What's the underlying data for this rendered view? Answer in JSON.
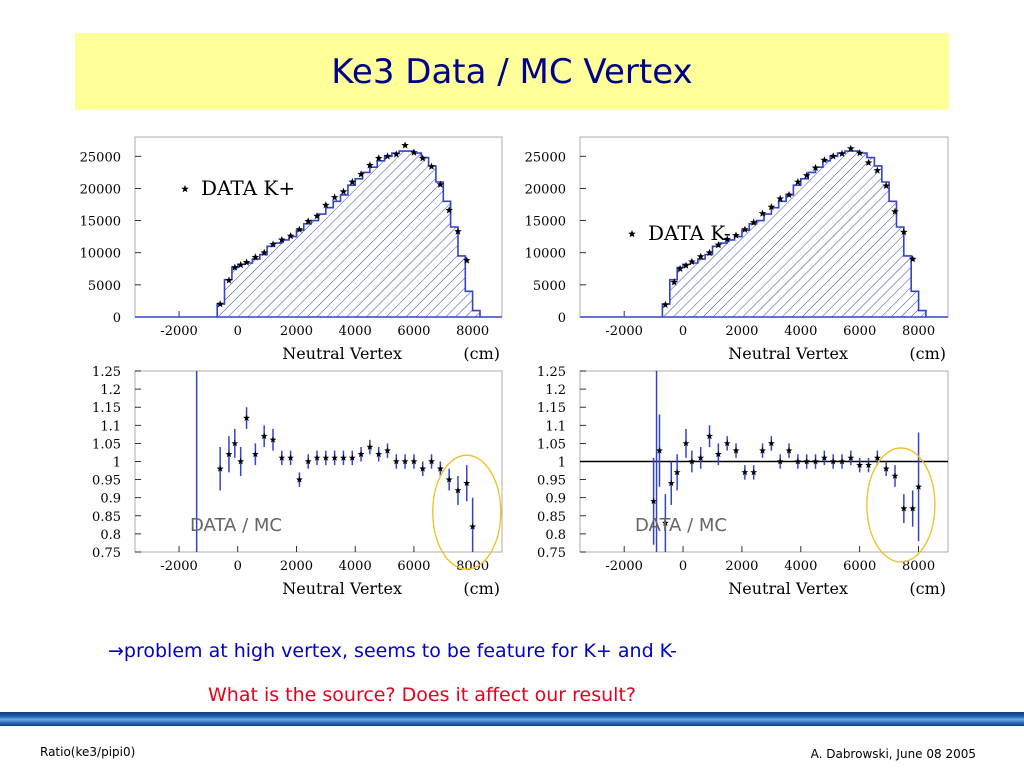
{
  "slide": {
    "title": "Ke3 Data / MC Vertex",
    "arrow": "→",
    "note1": "problem at high vertex, seems to be feature for K+ and K-",
    "note2": "What is the source? Does it affect our result?",
    "footer_left": "Ratio(ke3/pipi0)",
    "footer_right": "A. Dabrowski, June 08 2005"
  },
  "colors": {
    "title_bg": "#ffff99",
    "title_text": "#00008b",
    "note1": "#0000cc",
    "note2": "#e8001c",
    "hist_line": "#3344cc",
    "highlight_circle": "#f0c020"
  },
  "chart_data": [
    {
      "type": "histogram",
      "legend": "DATA  K+",
      "xlabel": "Neutral Vertex",
      "xunit": "(cm)",
      "xlim": [
        -3500,
        9000
      ],
      "ylim": [
        0,
        28000
      ],
      "xticks": [
        "-2000",
        "0",
        "2000",
        "4000",
        "6000",
        "8000"
      ],
      "yticks": [
        "0",
        "5000",
        "10000",
        "15000",
        "20000",
        "25000"
      ],
      "series": [
        {
          "kind": "mc_histogram",
          "values": [
            [
              -3500,
              0
            ],
            [
              -1000,
              0
            ],
            [
              -700,
              2000
            ],
            [
              -450,
              5800
            ],
            [
              -200,
              7700
            ],
            [
              0,
              8200
            ],
            [
              250,
              8400
            ],
            [
              500,
              9000
            ],
            [
              750,
              9700
            ],
            [
              1000,
              11000
            ],
            [
              1250,
              11500
            ],
            [
              1500,
              12000
            ],
            [
              1750,
              12500
            ],
            [
              2000,
              13500
            ],
            [
              2250,
              14500
            ],
            [
              2500,
              15000
            ],
            [
              2750,
              16000
            ],
            [
              3000,
              17000
            ],
            [
              3250,
              18000
            ],
            [
              3500,
              19000
            ],
            [
              3750,
              20500
            ],
            [
              4000,
              21500
            ],
            [
              4250,
              22500
            ],
            [
              4500,
              23300
            ],
            [
              4750,
              24300
            ],
            [
              5000,
              25000
            ],
            [
              5250,
              25500
            ],
            [
              5500,
              25800
            ],
            [
              5750,
              25800
            ],
            [
              6000,
              25500
            ],
            [
              6250,
              24800
            ],
            [
              6500,
              23500
            ],
            [
              6750,
              21000
            ],
            [
              7000,
              18000
            ],
            [
              7250,
              14000
            ],
            [
              7500,
              9500
            ],
            [
              7750,
              4000
            ],
            [
              8000,
              1000
            ],
            [
              8250,
              0
            ],
            [
              9000,
              0
            ]
          ]
        },
        {
          "kind": "data_points",
          "x": [
            -600,
            -300,
            -100,
            100,
            300,
            600,
            900,
            1200,
            1500,
            1800,
            2100,
            2400,
            2700,
            3000,
            3300,
            3600,
            3900,
            4200,
            4500,
            4800,
            5100,
            5400,
            5700,
            6000,
            6300,
            6600,
            6900,
            7200,
            7500,
            7800
          ],
          "y": [
            2000,
            5700,
            7700,
            8100,
            8500,
            9300,
            10000,
            11300,
            12000,
            12600,
            13600,
            14900,
            15700,
            17400,
            18600,
            19500,
            21000,
            22200,
            23600,
            24700,
            25000,
            25300,
            26700,
            25600,
            24700,
            23400,
            20600,
            16600,
            13300,
            8800
          ]
        }
      ]
    },
    {
      "type": "histogram",
      "legend": "DATA  K-",
      "xlabel": "Neutral Vertex",
      "xunit": "(cm)",
      "xlim": [
        -3500,
        9000
      ],
      "ylim": [
        0,
        28000
      ],
      "xticks": [
        "-2000",
        "0",
        "2000",
        "4000",
        "6000",
        "8000"
      ],
      "yticks": [
        "0",
        "5000",
        "10000",
        "15000",
        "20000",
        "25000"
      ],
      "series": [
        {
          "kind": "mc_histogram",
          "values": [
            [
              -3500,
              0
            ],
            [
              -1000,
              0
            ],
            [
              -700,
              2000
            ],
            [
              -450,
              5800
            ],
            [
              -200,
              7700
            ],
            [
              0,
              8200
            ],
            [
              250,
              8400
            ],
            [
              500,
              9000
            ],
            [
              750,
              9700
            ],
            [
              1000,
              11000
            ],
            [
              1250,
              11500
            ],
            [
              1500,
              12000
            ],
            [
              1750,
              12500
            ],
            [
              2000,
              13500
            ],
            [
              2250,
              14500
            ],
            [
              2500,
              15000
            ],
            [
              2750,
              16000
            ],
            [
              3000,
              17000
            ],
            [
              3250,
              18000
            ],
            [
              3500,
              19000
            ],
            [
              3750,
              20500
            ],
            [
              4000,
              21500
            ],
            [
              4250,
              22500
            ],
            [
              4500,
              23300
            ],
            [
              4750,
              24300
            ],
            [
              5000,
              25000
            ],
            [
              5250,
              25500
            ],
            [
              5500,
              25800
            ],
            [
              5750,
              25800
            ],
            [
              6000,
              25500
            ],
            [
              6250,
              24800
            ],
            [
              6500,
              23500
            ],
            [
              6750,
              21000
            ],
            [
              7000,
              18000
            ],
            [
              7250,
              14000
            ],
            [
              7500,
              9500
            ],
            [
              7750,
              4000
            ],
            [
              8000,
              1000
            ],
            [
              8250,
              0
            ],
            [
              9000,
              0
            ]
          ]
        },
        {
          "kind": "data_points",
          "x": [
            -600,
            -300,
            -100,
            100,
            300,
            600,
            900,
            1200,
            1500,
            1800,
            2100,
            2400,
            2700,
            3000,
            3300,
            3600,
            3900,
            4200,
            4500,
            4800,
            5100,
            5400,
            5700,
            6000,
            6300,
            6600,
            6900,
            7200,
            7500,
            7800
          ],
          "y": [
            1900,
            5400,
            7500,
            8000,
            8600,
            9400,
            10000,
            11200,
            12100,
            12700,
            13600,
            14700,
            16100,
            17100,
            18400,
            19000,
            21000,
            22000,
            23200,
            24400,
            25000,
            25400,
            26200,
            25500,
            24000,
            22800,
            20400,
            16400,
            13200,
            9000
          ]
        }
      ]
    },
    {
      "type": "scatter",
      "legend": "DATA / MC",
      "xlabel": "Neutral Vertex",
      "xunit": "(cm)",
      "xlim": [
        -3500,
        9000
      ],
      "ylim": [
        0.75,
        1.25
      ],
      "xticks": [
        "-2000",
        "0",
        "2000",
        "4000",
        "6000",
        "8000"
      ],
      "yticks": [
        "0.75",
        "0.8",
        "0.85",
        "0.9",
        "0.95",
        "1",
        "1.05",
        "1.1",
        "1.15",
        "1.2",
        "1.25"
      ],
      "reference_line": null,
      "highlight_circle": true,
      "vertical_line_x": -1400,
      "series": [
        {
          "name": "",
          "x": [
            -600,
            -300,
            -100,
            100,
            300,
            600,
            900,
            1200,
            1500,
            1800,
            2100,
            2400,
            2700,
            3000,
            3300,
            3600,
            3900,
            4200,
            4500,
            4800,
            5100,
            5400,
            5700,
            6000,
            6300,
            6600,
            6900,
            7200,
            7500,
            7800,
            8000
          ],
          "y": [
            0.98,
            1.02,
            1.05,
            1.0,
            1.12,
            1.02,
            1.07,
            1.06,
            1.01,
            1.01,
            0.95,
            1.0,
            1.01,
            1.01,
            1.01,
            1.01,
            1.01,
            1.02,
            1.04,
            1.02,
            1.03,
            1.0,
            1.0,
            1.0,
            0.98,
            1.0,
            0.98,
            0.95,
            0.92,
            0.94,
            0.82
          ],
          "err": [
            0.06,
            0.05,
            0.04,
            0.04,
            0.03,
            0.03,
            0.03,
            0.03,
            0.02,
            0.02,
            0.02,
            0.02,
            0.02,
            0.02,
            0.02,
            0.02,
            0.02,
            0.02,
            0.02,
            0.02,
            0.02,
            0.02,
            0.02,
            0.02,
            0.02,
            0.02,
            0.02,
            0.03,
            0.04,
            0.05,
            0.08
          ]
        }
      ]
    },
    {
      "type": "scatter",
      "legend": "DATA / MC",
      "xlabel": "Neutral Vertex",
      "xunit": "(cm)",
      "xlim": [
        -3500,
        9000
      ],
      "ylim": [
        0.75,
        1.25
      ],
      "xticks": [
        "-2000",
        "0",
        "2000",
        "4000",
        "6000",
        "8000"
      ],
      "yticks": [
        "0.75",
        "0.8",
        "0.85",
        "0.9",
        "0.95",
        "1",
        "1.05",
        "1.1",
        "1.15",
        "1.2",
        "1.25"
      ],
      "reference_line": 1.0,
      "highlight_circle": true,
      "vertical_line_x": -900,
      "series": [
        {
          "name": "",
          "x": [
            -1000,
            -800,
            -600,
            -400,
            -200,
            100,
            300,
            600,
            900,
            1200,
            1500,
            1800,
            2100,
            2400,
            2700,
            3000,
            3300,
            3600,
            3900,
            4200,
            4500,
            4800,
            5100,
            5400,
            5700,
            6000,
            6300,
            6600,
            6900,
            7200,
            7500,
            7800,
            8000
          ],
          "y": [
            0.89,
            1.03,
            0.83,
            0.94,
            0.97,
            1.05,
            1.0,
            1.01,
            1.07,
            1.02,
            1.05,
            1.03,
            0.97,
            0.97,
            1.03,
            1.05,
            1.0,
            1.03,
            1.0,
            1.0,
            1.0,
            1.01,
            1.0,
            1.0,
            1.01,
            0.99,
            0.99,
            1.01,
            0.98,
            0.96,
            0.87,
            0.87,
            0.93
          ],
          "err": [
            0.12,
            0.1,
            0.08,
            0.06,
            0.05,
            0.04,
            0.03,
            0.03,
            0.03,
            0.03,
            0.02,
            0.02,
            0.02,
            0.02,
            0.02,
            0.02,
            0.02,
            0.02,
            0.02,
            0.02,
            0.02,
            0.02,
            0.02,
            0.02,
            0.02,
            0.02,
            0.02,
            0.02,
            0.02,
            0.03,
            0.04,
            0.05,
            0.15
          ]
        }
      ]
    }
  ]
}
